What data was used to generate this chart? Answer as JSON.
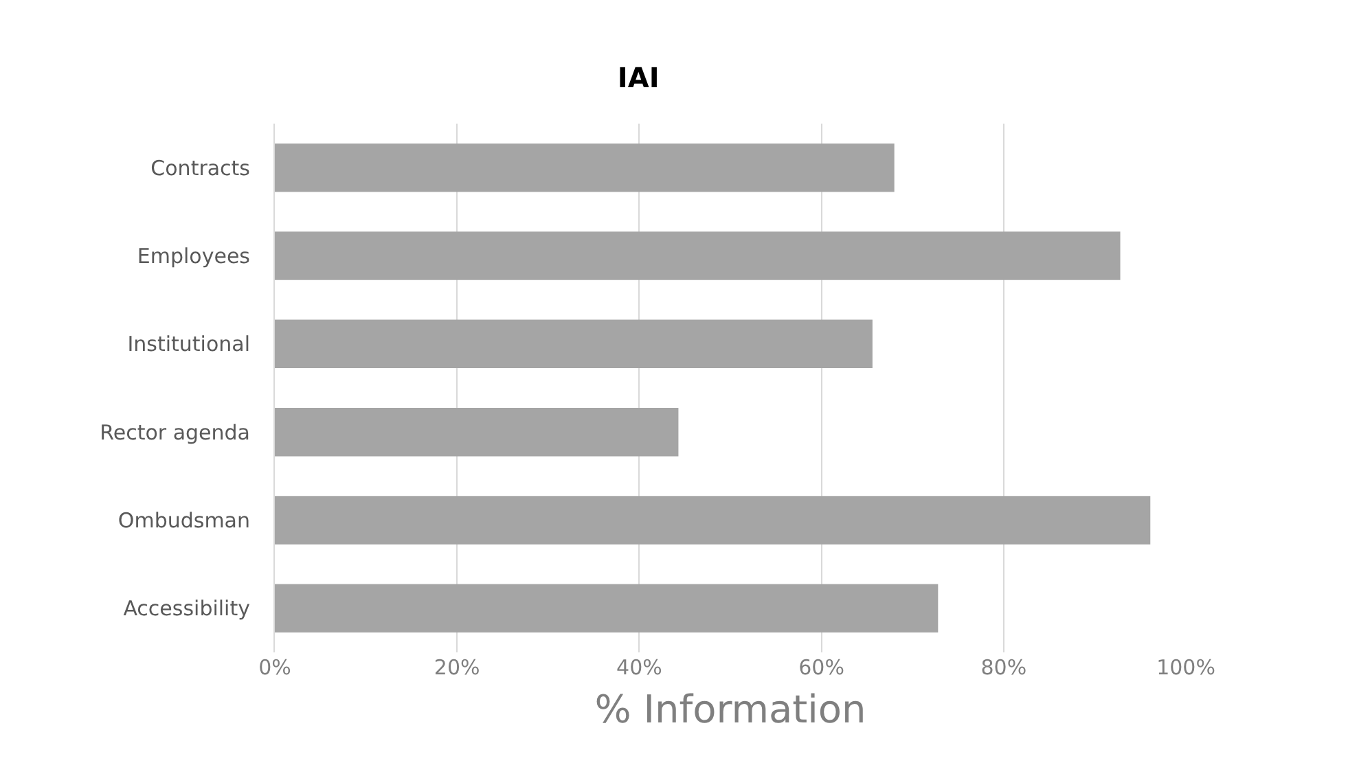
{
  "chart_data": {
    "type": "bar",
    "orientation": "horizontal",
    "title": "IAI",
    "xlabel": "% Information",
    "categories": [
      "Contracts",
      "Employees",
      "Institutional",
      "Rector agenda",
      "Ombudsman",
      "Accessibility"
    ],
    "values": [
      68.0,
      92.8,
      65.6,
      44.3,
      96.1,
      72.8
    ],
    "color": "#a5a5a5",
    "xlim": [
      0,
      100
    ],
    "xticks": [
      {
        "value": 0,
        "label": "0%"
      },
      {
        "value": 20,
        "label": "20%"
      },
      {
        "value": 40,
        "label": "40%"
      },
      {
        "value": 60,
        "label": "60%"
      },
      {
        "value": 80,
        "label": "80%"
      },
      {
        "value": 100,
        "label": "100%"
      }
    ],
    "grid": "x"
  }
}
